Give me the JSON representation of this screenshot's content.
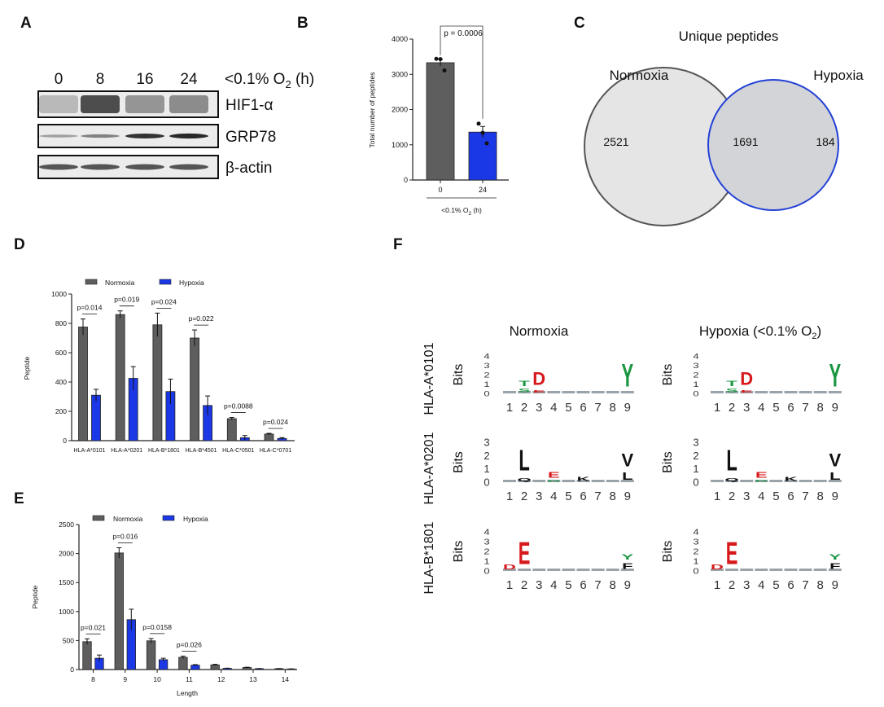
{
  "panels": {
    "A": "A",
    "B": "B",
    "C": "C",
    "D": "D",
    "E": "E",
    "F": "F"
  },
  "blot": {
    "timepoints": [
      "0",
      "8",
      "16",
      "24"
    ],
    "condition": {
      "pre": "<0.1% O",
      "sub": "2",
      "post": " (h)"
    },
    "rows": [
      {
        "label": "HIF1-α",
        "intensity": [
          0.25,
          0.85,
          0.45,
          0.5
        ],
        "style": "smear"
      },
      {
        "label": "GRP78",
        "intensity": [
          0.35,
          0.5,
          0.9,
          0.95
        ],
        "style": "thin"
      },
      {
        "label": "β-actin",
        "intensity": [
          0.8,
          0.8,
          0.8,
          0.8
        ],
        "style": "band"
      }
    ]
  },
  "colors": {
    "normoxia": "#5e5e5e",
    "hypoxia": "#1b38e6",
    "venn_normoxia": "#e5e5e5",
    "venn_overlap": "#d2d4d8",
    "venn_hypoxia_stroke": "#2341d6"
  },
  "chart_data": [
    {
      "id": "B",
      "type": "bar",
      "title": "",
      "categories": [
        "0",
        "24"
      ],
      "values": [
        3330,
        1360
      ],
      "errors": [
        100,
        160
      ],
      "points": [
        [
          3440,
          3430,
          3110
        ],
        [
          1600,
          1340,
          1040
        ]
      ],
      "ylabel": "Total number of peptides",
      "xlabel": {
        "pre": "<0.1% O",
        "sub": "2",
        "post": " (h)"
      },
      "ylim": [
        0,
        4000
      ],
      "yticks": [
        "0",
        "1000",
        "2000",
        "3000",
        "4000"
      ],
      "annotation": "p = 0.0006"
    },
    {
      "id": "D",
      "type": "bar",
      "categories": [
        "HLA-A*0101",
        "HLA-A*0201",
        "HLA-B*1801",
        "HLA-B*4501",
        "HLA-C*0501",
        "HLA-C*0701"
      ],
      "series": [
        {
          "name": "Normoxia",
          "values": [
            775,
            860,
            790,
            700,
            150,
            45
          ],
          "errors": [
            55,
            25,
            80,
            55,
            8,
            5
          ]
        },
        {
          "name": "Hypoxia",
          "values": [
            310,
            425,
            335,
            240,
            20,
            15
          ],
          "errors": [
            40,
            80,
            85,
            65,
            15,
            6
          ]
        }
      ],
      "pvalues": [
        "p=0.014",
        "p=0.019",
        "p=0.024",
        "p=0.022",
        "p=0.0088",
        "p=0.024"
      ],
      "ylabel": "Peptide",
      "xlabel": "",
      "ylim": [
        0,
        1000
      ],
      "yticks": [
        "0",
        "200",
        "400",
        "600",
        "800",
        "1000"
      ],
      "legend": "top"
    },
    {
      "id": "E",
      "type": "bar",
      "categories": [
        "8",
        "9",
        "10",
        "11",
        "12",
        "13",
        "14"
      ],
      "series": [
        {
          "name": "Normoxia",
          "values": [
            480,
            2010,
            495,
            210,
            80,
            35,
            15
          ],
          "errors": [
            50,
            90,
            40,
            20,
            10,
            5,
            3
          ]
        },
        {
          "name": "Hypoxia",
          "values": [
            195,
            860,
            170,
            75,
            20,
            15,
            10
          ],
          "errors": [
            55,
            180,
            25,
            10,
            4,
            3,
            2
          ]
        }
      ],
      "pvalues": [
        "p=0.021",
        "p=0.016",
        "p=0.0158",
        "p=0.026",
        "",
        "",
        ""
      ],
      "ylabel": "Peptide",
      "xlabel": "Length",
      "ylim": [
        0,
        2500
      ],
      "yticks": [
        "0",
        "500",
        "1000",
        "1500",
        "2000",
        "2500"
      ],
      "legend": "top"
    },
    {
      "id": "C",
      "type": "venn",
      "title": "Unique peptides",
      "sets": [
        "Normoxia",
        "Hypoxia"
      ],
      "values": {
        "normoxia_only": "2521",
        "overlap": "1691",
        "hypoxia_only": "184"
      }
    }
  ],
  "logos": {
    "columns": [
      "Normoxia",
      {
        "pre": "Hypoxia (<0.1% O",
        "sub": "2",
        "post": ")"
      }
    ],
    "rows": [
      {
        "allele": "HLA-A*0101",
        "ylabel": "Bits",
        "yticks": [
          "0",
          "1",
          "2",
          "3",
          "4"
        ],
        "max": 4,
        "stacks": [
          [
            2,
            [
              [
                "S",
                "#1a9641",
                0.6
              ],
              [
                "T",
                "#1a9641",
                0.9
              ]
            ]
          ],
          [
            3,
            [
              [
                "E",
                "#d7191c",
                0.5
              ],
              [
                "D",
                "#d7191c",
                2.2
              ]
            ]
          ],
          [
            9,
            [
              [
                "Y",
                "#1a9641",
                4.0
              ]
            ]
          ]
        ]
      },
      {
        "allele": "HLA-A*0201",
        "ylabel": "Bits",
        "yticks": [
          "0",
          "1",
          "2",
          "3"
        ],
        "max": 3,
        "stacks": [
          [
            2,
            [
              [
                "Q",
                "#111",
                0.4
              ],
              [
                "L",
                "#111",
                2.6
              ]
            ]
          ],
          [
            4,
            [
              [
                "D",
                "#1a9641",
                0.2
              ],
              [
                "E",
                "#d7191c",
                0.7
              ]
            ]
          ],
          [
            6,
            [
              [
                "K",
                "#111",
                0.5
              ]
            ]
          ],
          [
            9,
            [
              [
                "L",
                "#111",
                0.9
              ],
              [
                "V",
                "#111",
                1.6
              ]
            ]
          ]
        ]
      },
      {
        "allele": "HLA-B*1801",
        "ylabel": "Bits",
        "yticks": [
          "0",
          "1",
          "2",
          "3",
          "4"
        ],
        "max": 4,
        "stacks": [
          [
            1,
            [
              [
                "D",
                "#d7191c",
                0.8
              ]
            ]
          ],
          [
            2,
            [
              [
                "E",
                "#d7191c",
                3.8
              ]
            ]
          ],
          [
            9,
            [
              [
                "F",
                "#111",
                1.0
              ],
              [
                "Y",
                "#1a9641",
                0.9
              ]
            ]
          ]
        ]
      }
    ],
    "positions": [
      "1",
      "2",
      "3",
      "4",
      "5",
      "6",
      "7",
      "8",
      "9"
    ]
  }
}
